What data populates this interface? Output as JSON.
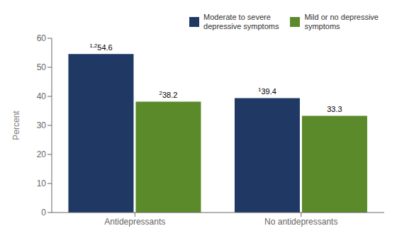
{
  "chart_data": {
    "type": "bar",
    "categories": [
      "Antidepressants",
      "No antidepressants"
    ],
    "series": [
      {
        "name": "Moderate to severe\ndepressive symptoms",
        "color": "#1f3864",
        "values": [
          54.6,
          39.4
        ],
        "superscripts": [
          "1,2",
          "1"
        ]
      },
      {
        "name": "Mild or no depressive\nsymptoms",
        "color": "#5a8a2a",
        "values": [
          38.2,
          33.3
        ],
        "superscripts": [
          "2",
          null
        ]
      }
    ],
    "y_label": "Percent",
    "ylim": [
      0,
      60
    ],
    "yticks": [
      0,
      10,
      20,
      30,
      40,
      50,
      60
    ],
    "grid": false,
    "legend": "upper right",
    "data_labels": true
  }
}
